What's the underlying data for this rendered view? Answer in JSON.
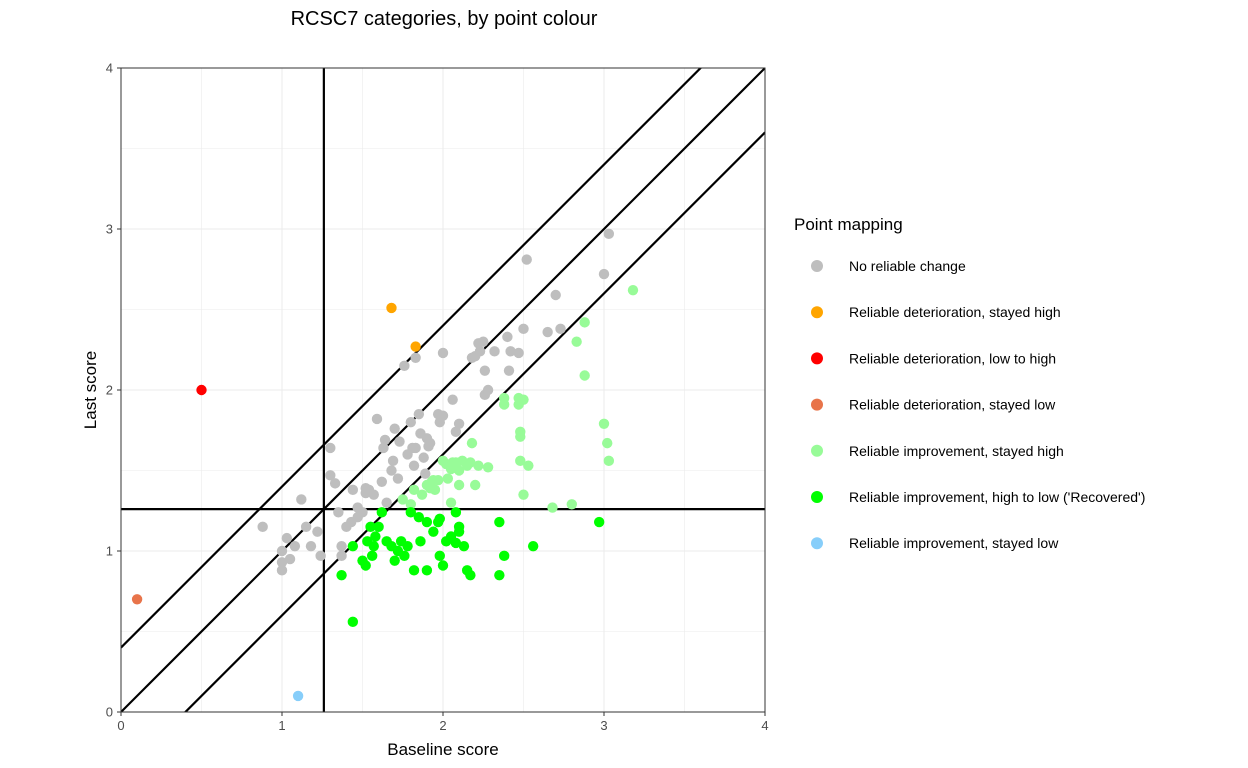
{
  "chart_data": {
    "type": "scatter",
    "title": "RCSC7 categories, by point colour",
    "xlabel": "Baseline score",
    "ylabel": "Last score",
    "xlim": [
      0,
      4
    ],
    "ylim": [
      0,
      4
    ],
    "xticks": [
      "0",
      "1",
      "2",
      "3",
      "4"
    ],
    "yticks": [
      "0",
      "1",
      "2",
      "3",
      "4"
    ],
    "grid": true,
    "legend_position": "right",
    "legend_title": "Point mapping",
    "reference_lines": {
      "cutoff": 1.26,
      "rci_offset": 0.4
    },
    "series": [
      {
        "name": "No reliable change",
        "color": "#bebebe",
        "points": [
          [
            0.88,
            1.15
          ],
          [
            1.0,
            0.88
          ],
          [
            1.0,
            0.93
          ],
          [
            1.0,
            1.0
          ],
          [
            1.03,
            1.08
          ],
          [
            1.05,
            0.95
          ],
          [
            1.08,
            1.03
          ],
          [
            1.12,
            1.32
          ],
          [
            1.15,
            1.15
          ],
          [
            1.18,
            1.03
          ],
          [
            1.22,
            1.12
          ],
          [
            1.24,
            0.97
          ],
          [
            1.3,
            1.64
          ],
          [
            1.3,
            1.47
          ],
          [
            1.33,
            1.42
          ],
          [
            1.35,
            1.24
          ],
          [
            1.37,
            1.03
          ],
          [
            1.37,
            0.97
          ],
          [
            1.4,
            1.15
          ],
          [
            1.43,
            1.18
          ],
          [
            1.44,
            1.38
          ],
          [
            1.47,
            1.21
          ],
          [
            1.47,
            1.27
          ],
          [
            1.5,
            1.24
          ],
          [
            1.52,
            1.36
          ],
          [
            1.52,
            1.39
          ],
          [
            1.54,
            1.38
          ],
          [
            1.57,
            1.35
          ],
          [
            1.59,
            1.82
          ],
          [
            1.62,
            1.43
          ],
          [
            1.63,
            1.64
          ],
          [
            1.64,
            1.69
          ],
          [
            1.65,
            1.3
          ],
          [
            1.68,
            1.5
          ],
          [
            1.69,
            1.56
          ],
          [
            1.7,
            1.76
          ],
          [
            1.72,
            1.45
          ],
          [
            1.73,
            1.68
          ],
          [
            1.76,
            2.15
          ],
          [
            1.78,
            1.6
          ],
          [
            1.8,
            1.8
          ],
          [
            1.81,
            1.64
          ],
          [
            1.82,
            1.53
          ],
          [
            1.83,
            1.64
          ],
          [
            1.83,
            2.2
          ],
          [
            1.85,
            1.85
          ],
          [
            1.86,
            1.73
          ],
          [
            1.88,
            1.58
          ],
          [
            1.89,
            1.48
          ],
          [
            1.9,
            1.7
          ],
          [
            1.91,
            1.65
          ],
          [
            1.92,
            1.67
          ],
          [
            1.97,
            1.85
          ],
          [
            1.98,
            1.8
          ],
          [
            2.0,
            1.84
          ],
          [
            2.0,
            2.23
          ],
          [
            2.06,
            1.94
          ],
          [
            2.08,
            1.74
          ],
          [
            2.1,
            1.79
          ],
          [
            2.18,
            2.2
          ],
          [
            2.2,
            2.21
          ],
          [
            2.22,
            2.29
          ],
          [
            2.23,
            2.24
          ],
          [
            2.25,
            2.3
          ],
          [
            2.26,
            2.12
          ],
          [
            2.26,
            1.97
          ],
          [
            2.28,
            2.0
          ],
          [
            2.32,
            2.24
          ],
          [
            2.4,
            2.33
          ],
          [
            2.41,
            2.12
          ],
          [
            2.42,
            2.24
          ],
          [
            2.47,
            2.23
          ],
          [
            2.5,
            2.38
          ],
          [
            2.52,
            2.81
          ],
          [
            2.65,
            2.36
          ],
          [
            2.7,
            2.59
          ],
          [
            2.73,
            2.38
          ],
          [
            3.0,
            2.72
          ],
          [
            3.03,
            2.97
          ]
        ]
      },
      {
        "name": "Reliable deterioration, stayed high",
        "color": "#ffa500",
        "points": [
          [
            1.68,
            2.51
          ],
          [
            1.83,
            2.27
          ]
        ]
      },
      {
        "name": "Reliable deterioration, low to high",
        "color": "#ff0000",
        "points": [
          [
            0.5,
            2.0
          ]
        ]
      },
      {
        "name": "Reliable deterioration, stayed low",
        "color": "#e8744a",
        "points": [
          [
            0.1,
            0.7
          ]
        ]
      },
      {
        "name": "Reliable improvement, stayed high",
        "color": "#98fb98",
        "points": [
          [
            1.75,
            1.32
          ],
          [
            1.8,
            1.29
          ],
          [
            1.82,
            1.38
          ],
          [
            1.87,
            1.35
          ],
          [
            1.9,
            1.41
          ],
          [
            1.92,
            1.39
          ],
          [
            1.94,
            1.44
          ],
          [
            1.95,
            1.38
          ],
          [
            1.97,
            1.44
          ],
          [
            2.0,
            1.56
          ],
          [
            2.02,
            1.54
          ],
          [
            2.03,
            1.45
          ],
          [
            2.05,
            1.51
          ],
          [
            2.06,
            1.55
          ],
          [
            2.08,
            1.55
          ],
          [
            2.1,
            1.5
          ],
          [
            2.12,
            1.56
          ],
          [
            2.15,
            1.53
          ],
          [
            2.17,
            1.55
          ],
          [
            2.18,
            1.67
          ],
          [
            2.2,
            1.41
          ],
          [
            2.22,
            1.53
          ],
          [
            2.28,
            1.52
          ],
          [
            2.38,
            1.95
          ],
          [
            2.38,
            1.91
          ],
          [
            2.47,
            1.91
          ],
          [
            2.47,
            1.95
          ],
          [
            2.48,
            1.71
          ],
          [
            2.48,
            1.74
          ],
          [
            2.48,
            1.56
          ],
          [
            2.5,
            1.94
          ],
          [
            2.5,
            1.35
          ],
          [
            2.53,
            1.53
          ],
          [
            2.68,
            1.27
          ],
          [
            2.8,
            1.29
          ],
          [
            2.83,
            2.3
          ],
          [
            2.88,
            2.42
          ],
          [
            2.88,
            2.09
          ],
          [
            3.0,
            1.79
          ],
          [
            3.02,
            1.67
          ],
          [
            3.03,
            1.56
          ],
          [
            3.18,
            2.62
          ],
          [
            2.1,
            1.41
          ],
          [
            2.05,
            1.3
          ],
          [
            1.93,
            1.43
          ]
        ]
      },
      {
        "name": "Reliable improvement, high to low ('Recovered')",
        "color": "#00ff00",
        "points": [
          [
            1.37,
            0.85
          ],
          [
            1.44,
            1.03
          ],
          [
            1.44,
            0.56
          ],
          [
            1.5,
            0.94
          ],
          [
            1.52,
            0.91
          ],
          [
            1.53,
            1.06
          ],
          [
            1.55,
            1.15
          ],
          [
            1.56,
            0.97
          ],
          [
            1.57,
            1.03
          ],
          [
            1.58,
            1.09
          ],
          [
            1.6,
            1.15
          ],
          [
            1.62,
            1.24
          ],
          [
            1.65,
            1.06
          ],
          [
            1.68,
            1.03
          ],
          [
            1.7,
            0.94
          ],
          [
            1.72,
            1.0
          ],
          [
            1.74,
            1.06
          ],
          [
            1.76,
            0.97
          ],
          [
            1.78,
            1.03
          ],
          [
            1.8,
            1.24
          ],
          [
            1.82,
            0.88
          ],
          [
            1.85,
            1.21
          ],
          [
            1.86,
            1.06
          ],
          [
            1.9,
            0.88
          ],
          [
            1.9,
            1.18
          ],
          [
            1.94,
            1.12
          ],
          [
            1.97,
            1.18
          ],
          [
            1.98,
            1.2
          ],
          [
            2.0,
            0.91
          ],
          [
            2.02,
            1.06
          ],
          [
            2.05,
            1.09
          ],
          [
            2.08,
            1.24
          ],
          [
            2.1,
            1.12
          ],
          [
            2.1,
            1.15
          ],
          [
            2.13,
            1.03
          ],
          [
            2.15,
            0.88
          ],
          [
            2.17,
            0.85
          ],
          [
            2.35,
            1.18
          ],
          [
            2.35,
            0.85
          ],
          [
            2.38,
            0.97
          ],
          [
            2.56,
            1.03
          ],
          [
            2.97,
            1.18
          ],
          [
            2.08,
            1.05
          ],
          [
            1.98,
            0.97
          ]
        ]
      },
      {
        "name": "Reliable improvement, stayed low",
        "color": "#87cefa",
        "points": [
          [
            1.1,
            0.1
          ]
        ]
      }
    ]
  }
}
